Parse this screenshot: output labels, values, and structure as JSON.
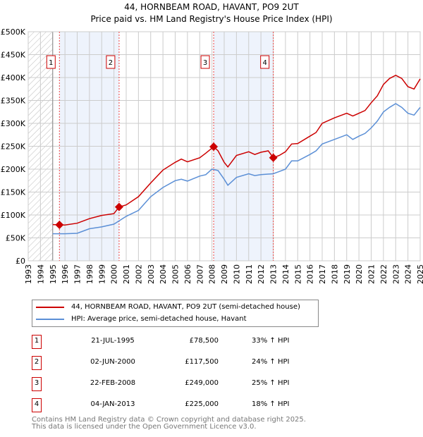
{
  "chart_data": {
    "type": "line",
    "title": "44, HORNBEAM ROAD, HAVANT, PO9 2UT",
    "subtitle": "Price paid vs. HM Land Registry's House Price Index (HPI)",
    "xlim": [
      1993,
      2025
    ],
    "ylim": [
      0,
      500000
    ],
    "x_ticks": [
      "1993",
      "1994",
      "1995",
      "1996",
      "1997",
      "1998",
      "1999",
      "2000",
      "2001",
      "2002",
      "2003",
      "2004",
      "2005",
      "2006",
      "2007",
      "2008",
      "2009",
      "2010",
      "2011",
      "2012",
      "2013",
      "2014",
      "2015",
      "2016",
      "2017",
      "2018",
      "2019",
      "2020",
      "2021",
      "2022",
      "2023",
      "2024",
      "2025"
    ],
    "y_ticks": [
      {
        "v": 0,
        "label": "£0"
      },
      {
        "v": 50000,
        "label": "£50K"
      },
      {
        "v": 100000,
        "label": "£100K"
      },
      {
        "v": 150000,
        "label": "£150K"
      },
      {
        "v": 200000,
        "label": "£200K"
      },
      {
        "v": 250000,
        "label": "£250K"
      },
      {
        "v": 300000,
        "label": "£300K"
      },
      {
        "v": 350000,
        "label": "£350K"
      },
      {
        "v": 400000,
        "label": "£400K"
      },
      {
        "v": 450000,
        "label": "£450K"
      },
      {
        "v": 500000,
        "label": "£500K"
      }
    ],
    "grid": true,
    "series": [
      {
        "name": "44, HORNBEAM ROAD, HAVANT, PO9 2UT (semi-detached house)",
        "color": "#cc0000",
        "x": [
          1995,
          1995.55,
          1996,
          1997,
          1998,
          1999,
          2000,
          2000.42,
          2001,
          2002,
          2003,
          2004,
          2005,
          2005.5,
          2006,
          2007,
          2007.5,
          2008.14,
          2008.5,
          2009,
          2009.3,
          2010,
          2011,
          2011.5,
          2012,
          2012.6,
          2013.01,
          2013.5,
          2014,
          2014.5,
          2015,
          2016,
          2016.5,
          2017,
          2018,
          2019,
          2019.5,
          2020,
          2020.5,
          2021,
          2021.5,
          2022,
          2022.5,
          2023,
          2023.5,
          2024,
          2024.5,
          2025
        ],
        "y": [
          79000,
          78500,
          78000,
          82000,
          92000,
          99000,
          103000,
          117500,
          122000,
          140000,
          170000,
          198000,
          215000,
          222000,
          216000,
          225000,
          235000,
          249000,
          240000,
          215000,
          205000,
          230000,
          238000,
          232000,
          237000,
          240000,
          225000,
          230000,
          238000,
          255000,
          256000,
          272000,
          280000,
          300000,
          312000,
          322000,
          316000,
          322000,
          328000,
          345000,
          360000,
          385000,
          398000,
          405000,
          398000,
          380000,
          375000,
          397000
        ]
      },
      {
        "name": "HPI: Average price, semi-detached house, Havant",
        "color": "#5b8fd6",
        "x": [
          1995,
          1996,
          1997,
          1998,
          1999,
          2000,
          2001,
          2002,
          2003,
          2004,
          2005,
          2005.5,
          2006,
          2007,
          2007.5,
          2008,
          2008.5,
          2009,
          2009.3,
          2010,
          2011,
          2011.5,
          2012,
          2013,
          2013.5,
          2014,
          2014.5,
          2015,
          2016,
          2016.5,
          2017,
          2018,
          2019,
          2019.5,
          2020,
          2020.5,
          2021,
          2021.5,
          2022,
          2022.5,
          2023,
          2023.5,
          2024,
          2024.5,
          2025
        ],
        "y": [
          59000,
          59000,
          60000,
          70000,
          74000,
          80000,
          97000,
          110000,
          140000,
          160000,
          175000,
          178000,
          174000,
          185000,
          188000,
          200000,
          197000,
          178000,
          165000,
          182000,
          190000,
          186000,
          188000,
          190000,
          195000,
          200000,
          218000,
          218000,
          232000,
          240000,
          255000,
          265000,
          275000,
          265000,
          272000,
          278000,
          290000,
          305000,
          325000,
          335000,
          343000,
          335000,
          322000,
          318000,
          335000
        ]
      }
    ],
    "sales": [
      {
        "id": "1",
        "x": 1995.55,
        "price": 78500
      },
      {
        "id": "2",
        "x": 2000.42,
        "price": 117500
      },
      {
        "id": "3",
        "x": 2008.14,
        "price": 249000
      },
      {
        "id": "4",
        "x": 2013.01,
        "price": 225000
      }
    ],
    "legend_placement": "bottom"
  },
  "sales_table": [
    {
      "id": "1",
      "date": "21-JUL-1995",
      "price": "£78,500",
      "hpi": "33% ↑ HPI"
    },
    {
      "id": "2",
      "date": "02-JUN-2000",
      "price": "£117,500",
      "hpi": "24% ↑ HPI"
    },
    {
      "id": "3",
      "date": "22-FEB-2008",
      "price": "£249,000",
      "hpi": "25% ↑ HPI"
    },
    {
      "id": "4",
      "date": "04-JAN-2013",
      "price": "£225,000",
      "hpi": "18% ↑ HPI"
    }
  ],
  "footer": {
    "line1": "Contains HM Land Registry data © Crown copyright and database right 2025.",
    "line2": "This data is licensed under the Open Government Licence v3.0."
  }
}
